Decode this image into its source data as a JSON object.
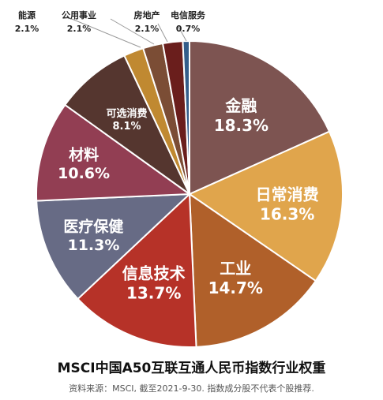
{
  "chart_data": {
    "type": "pie",
    "title": "MSCI中国A50互联互通人民币指数行业权重",
    "source_note": "资料来源：MSCI, 截至2021-9-30. 指数成分股不代表个股推荐.",
    "slices": [
      {
        "label": "金融",
        "value": 18.3,
        "value_text": "18.3%",
        "color": "#7d5451"
      },
      {
        "label": "日常消费",
        "value": 16.3,
        "value_text": "16.3%",
        "color": "#e0a54c"
      },
      {
        "label": "工业",
        "value": 14.7,
        "value_text": "14.7%",
        "color": "#b0602a"
      },
      {
        "label": "信息技术",
        "value": 13.7,
        "value_text": "13.7%",
        "color": "#b63228"
      },
      {
        "label": "医疗保健",
        "value": 11.3,
        "value_text": "11.3%",
        "color": "#676b85"
      },
      {
        "label": "材料",
        "value": 10.6,
        "value_text": "10.6%",
        "color": "#923e53"
      },
      {
        "label": "可选消费",
        "value": 8.1,
        "value_text": "8.1%",
        "color": "#55362f"
      },
      {
        "label": "能源",
        "value": 2.1,
        "value_text": "2.1%",
        "color": "#c08931"
      },
      {
        "label": "公用事业",
        "value": 2.1,
        "value_text": "2.1%",
        "color": "#7b4d35"
      },
      {
        "label": "房地产",
        "value": 2.1,
        "value_text": "2.1%",
        "color": "#6a1e1c"
      },
      {
        "label": "电信服务",
        "value": 0.7,
        "value_text": "0.7%",
        "color": "#345e8b"
      }
    ]
  }
}
